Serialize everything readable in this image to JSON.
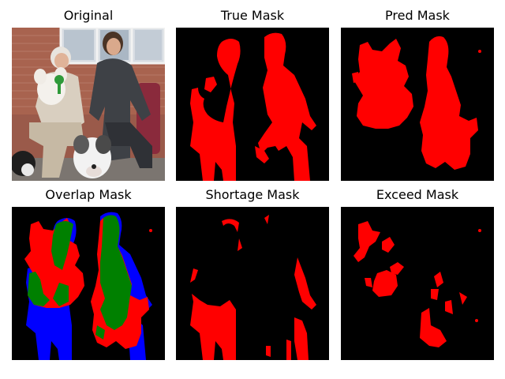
{
  "panels": [
    {
      "title": "Original"
    },
    {
      "title": "True Mask"
    },
    {
      "title": "Pred Mask"
    },
    {
      "title": "Overlap Mask"
    },
    {
      "title": "Shortage Mask"
    },
    {
      "title": "Exceed Mask"
    }
  ],
  "colors": {
    "background": "#000000",
    "mask": "#ff0000",
    "overlap_true_positive": "#008000",
    "overlap_false_negative": "#0000ff",
    "overlap_false_positive": "#ff0000"
  }
}
